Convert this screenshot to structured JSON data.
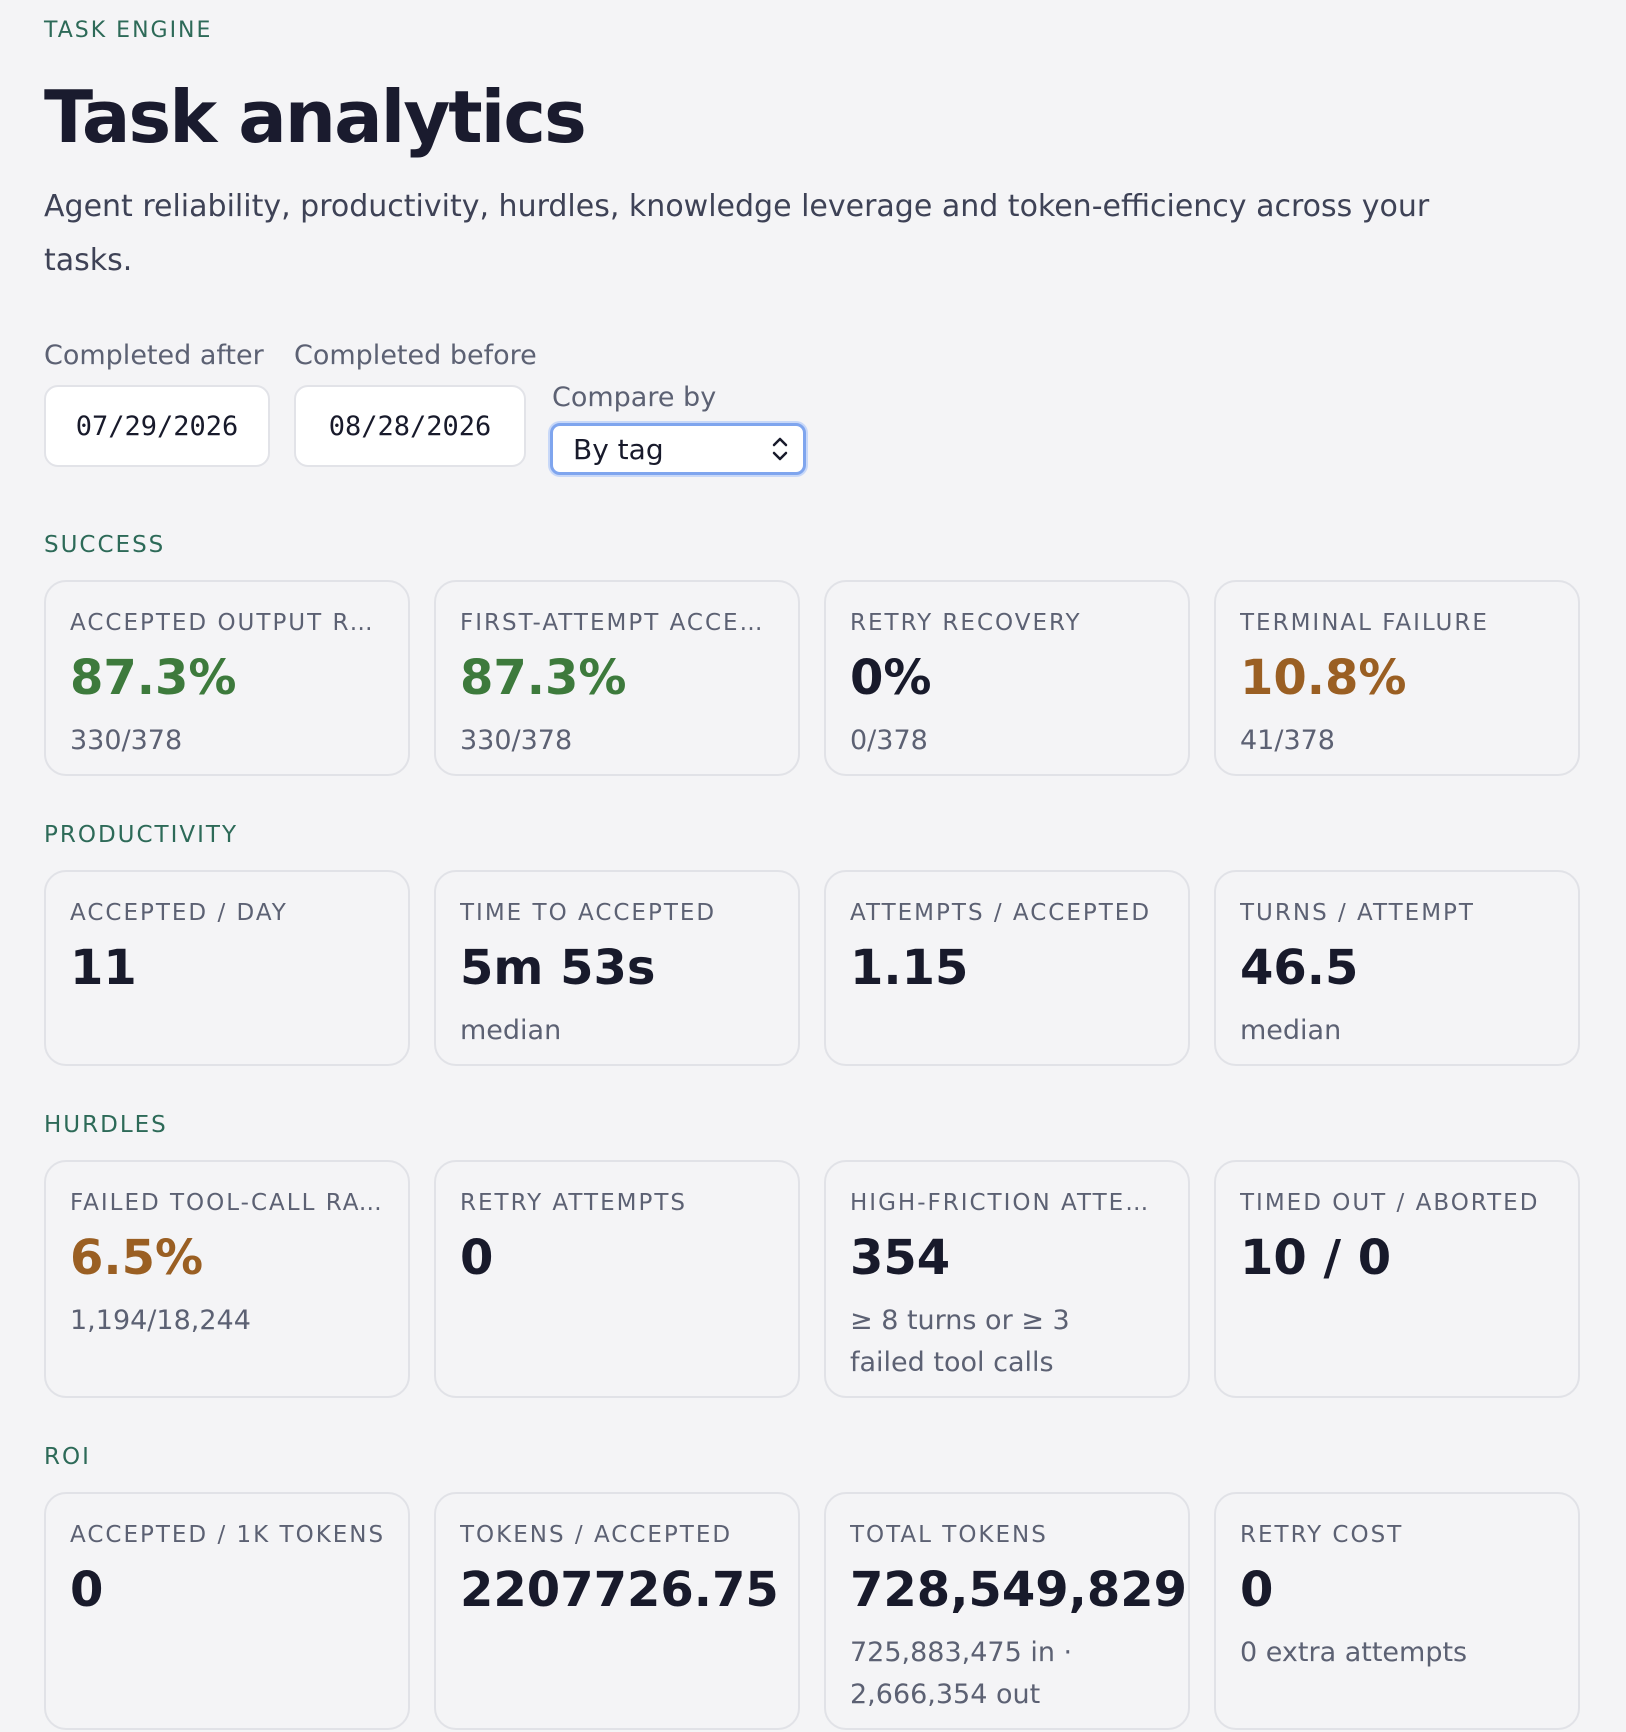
{
  "header": {
    "eyebrow": "TASK ENGINE",
    "title": "Task analytics",
    "subtitle": "Agent reliability, productivity, hurdles, knowledge leverage and token-efficiency across your tasks."
  },
  "filters": {
    "completed_after_label": "Completed after",
    "completed_after_value": "07/29/2026",
    "completed_before_label": "Completed before",
    "completed_before_value": "08/28/2026",
    "compare_by_label": "Compare by",
    "compare_by_value": "By tag"
  },
  "sections": {
    "success": {
      "title": "SUCCESS",
      "cards": [
        {
          "label": "ACCEPTED OUTPUT RA…",
          "value": "87.3%",
          "sub": "330/378",
          "tone": "green"
        },
        {
          "label": "FIRST-ATTEMPT ACCE…",
          "value": "87.3%",
          "sub": "330/378",
          "tone": "green"
        },
        {
          "label": "RETRY RECOVERY",
          "value": "0%",
          "sub": "0/378",
          "tone": "default"
        },
        {
          "label": "TERMINAL FAILURE",
          "value": "10.8%",
          "sub": "41/378",
          "tone": "amber"
        }
      ]
    },
    "productivity": {
      "title": "PRODUCTIVITY",
      "cards": [
        {
          "label": "ACCEPTED / DAY",
          "value": "11",
          "sub": ""
        },
        {
          "label": "TIME TO ACCEPTED",
          "value": "5m 53s",
          "sub": "median"
        },
        {
          "label": "ATTEMPTS / ACCEPTED",
          "value": "1.15",
          "sub": ""
        },
        {
          "label": "TURNS / ATTEMPT",
          "value": "46.5",
          "sub": "median"
        }
      ]
    },
    "hurdles": {
      "title": "HURDLES",
      "cards": [
        {
          "label": "FAILED TOOL-CALL RATE",
          "value": "6.5%",
          "sub": "1,194/18,244",
          "tone": "amber"
        },
        {
          "label": "RETRY ATTEMPTS",
          "value": "0",
          "sub": ""
        },
        {
          "label": "HIGH-FRICTION ATTEM…",
          "value": "354",
          "sub": "≥ 8 turns or ≥ 3 failed tool calls"
        },
        {
          "label": "TIMED OUT / ABORTED",
          "value": "10 / 0",
          "sub": ""
        }
      ]
    },
    "roi": {
      "title": "ROI",
      "cards": [
        {
          "label": "ACCEPTED / 1K TOKENS",
          "value": "0",
          "sub": ""
        },
        {
          "label": "TOKENS / ACCEPTED",
          "value": "2207726.75",
          "sub": ""
        },
        {
          "label": "TOTAL TOKENS",
          "value": "728,549,829",
          "sub": "725,883,475 in · 2,666,354 out"
        },
        {
          "label": "RETRY COST",
          "value": "0",
          "sub": "0 extra attempts"
        }
      ]
    }
  },
  "colors": {
    "section_accent": "#2d6a58",
    "positive": "#3d7a3c",
    "warning": "#9a5f23",
    "focus_ring": "#7fa5ee"
  }
}
